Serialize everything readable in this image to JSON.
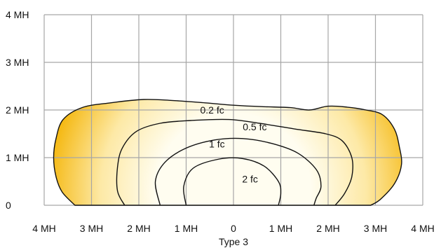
{
  "chart_data": {
    "type": "area",
    "title": "",
    "xlabel": "Type 3",
    "ylabel": "",
    "x_tick_labels": [
      "4 MH",
      "3 MH",
      "2 MH",
      "1 MH",
      "0",
      "1 MH",
      "2 MH",
      "3 MH",
      "4 MH"
    ],
    "y_tick_labels": [
      "0",
      "1 MH",
      "2 MH",
      "3 MH",
      "4 MH"
    ],
    "xlim": [
      -4,
      4
    ],
    "ylim": [
      0,
      4
    ],
    "grid": true,
    "units": "mounting heights (MH)",
    "colors": {
      "grid": "#a6a6a6",
      "outline": "#111111",
      "fill_center": "#fffdf0",
      "fill_mid": "#fde9a6",
      "fill_edge": "#f5b914"
    },
    "series": [
      {
        "name": "0.2 fc",
        "points": [
          [
            -3.35,
            0
          ],
          [
            -3.62,
            0.28
          ],
          [
            -3.75,
            0.6
          ],
          [
            -3.8,
            1.0
          ],
          [
            -3.75,
            1.4
          ],
          [
            -3.6,
            1.8
          ],
          [
            -3.2,
            2.05
          ],
          [
            -2.6,
            2.15
          ],
          [
            -1.9,
            2.22
          ],
          [
            -1.3,
            2.2
          ],
          [
            -0.6,
            2.15
          ],
          [
            0,
            2.1
          ],
          [
            0.6,
            2.07
          ],
          [
            1.2,
            2.05
          ],
          [
            1.6,
            2.0
          ],
          [
            2.0,
            2.08
          ],
          [
            2.4,
            2.06
          ],
          [
            2.8,
            2.0
          ],
          [
            3.15,
            1.9
          ],
          [
            3.4,
            1.6
          ],
          [
            3.5,
            1.25
          ],
          [
            3.55,
            0.85
          ],
          [
            3.4,
            0.45
          ],
          [
            3.1,
            0.12
          ],
          [
            2.9,
            0
          ]
        ]
      },
      {
        "name": "0.5 fc",
        "points": [
          [
            -2.3,
            0
          ],
          [
            -2.45,
            0.3
          ],
          [
            -2.45,
            0.8
          ],
          [
            -2.35,
            1.2
          ],
          [
            -2.05,
            1.55
          ],
          [
            -1.55,
            1.72
          ],
          [
            -0.9,
            1.78
          ],
          [
            -0.1,
            1.8
          ],
          [
            0.55,
            1.72
          ],
          [
            1.3,
            1.6
          ],
          [
            1.95,
            1.5
          ],
          [
            2.3,
            1.35
          ],
          [
            2.5,
            1.0
          ],
          [
            2.5,
            0.6
          ],
          [
            2.35,
            0.25
          ],
          [
            2.15,
            0
          ]
        ]
      },
      {
        "name": "1 fc",
        "points": [
          [
            -1.55,
            0
          ],
          [
            -1.65,
            0.5
          ],
          [
            -1.45,
            0.9
          ],
          [
            -1.0,
            1.2
          ],
          [
            -0.4,
            1.37
          ],
          [
            0.2,
            1.4
          ],
          [
            0.8,
            1.3
          ],
          [
            1.35,
            1.1
          ],
          [
            1.75,
            0.75
          ],
          [
            1.85,
            0.4
          ],
          [
            1.75,
            0.15
          ],
          [
            1.7,
            0
          ]
        ]
      },
      {
        "name": "2 fc",
        "points": [
          [
            -1.0,
            0
          ],
          [
            -1.05,
            0.4
          ],
          [
            -0.85,
            0.78
          ],
          [
            -0.3,
            0.97
          ],
          [
            0.2,
            0.98
          ],
          [
            0.65,
            0.82
          ],
          [
            0.95,
            0.5
          ],
          [
            1.0,
            0.25
          ],
          [
            0.95,
            0
          ]
        ]
      }
    ],
    "annotations": [
      {
        "text": "0.2 fc",
        "x": -0.45,
        "y": 1.98
      },
      {
        "text": "0.5 fc",
        "x": 0.45,
        "y": 1.63
      },
      {
        "text": "1 fc",
        "x": -0.35,
        "y": 1.27
      },
      {
        "text": "2 fc",
        "x": 0.35,
        "y": 0.53
      }
    ]
  }
}
